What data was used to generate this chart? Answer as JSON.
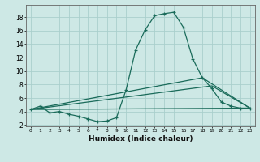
{
  "xlabel": "Humidex (Indice chaleur)",
  "background_color": "#cde8e5",
  "grid_color": "#aacfcc",
  "line_color": "#1a6b5a",
  "xlim": [
    -0.5,
    23.5
  ],
  "ylim": [
    1.8,
    19.8
  ],
  "xticks": [
    0,
    1,
    2,
    3,
    4,
    5,
    6,
    7,
    8,
    9,
    10,
    11,
    12,
    13,
    14,
    15,
    16,
    17,
    18,
    19,
    20,
    21,
    22,
    23
  ],
  "yticks": [
    2,
    4,
    6,
    8,
    10,
    12,
    14,
    16,
    18
  ],
  "series": [
    {
      "x": [
        0,
        1,
        2,
        3,
        4,
        5,
        6,
        7,
        8,
        9,
        10,
        11,
        12,
        13,
        14,
        15,
        16,
        17,
        18,
        19,
        20,
        21,
        22,
        23
      ],
      "y": [
        4.3,
        4.8,
        3.8,
        4.0,
        3.6,
        3.3,
        2.9,
        2.5,
        2.6,
        3.1,
        7.2,
        13.1,
        16.1,
        18.2,
        18.5,
        18.7,
        16.5,
        11.8,
        9.0,
        7.4,
        5.4,
        4.8,
        4.5,
        4.5
      ],
      "marker": true
    },
    {
      "x": [
        0,
        23
      ],
      "y": [
        4.3,
        4.5
      ],
      "marker": false
    },
    {
      "x": [
        0,
        19,
        23
      ],
      "y": [
        4.3,
        7.8,
        4.5
      ],
      "marker": false
    },
    {
      "x": [
        0,
        18,
        23
      ],
      "y": [
        4.3,
        9.0,
        4.5
      ],
      "marker": false
    }
  ]
}
